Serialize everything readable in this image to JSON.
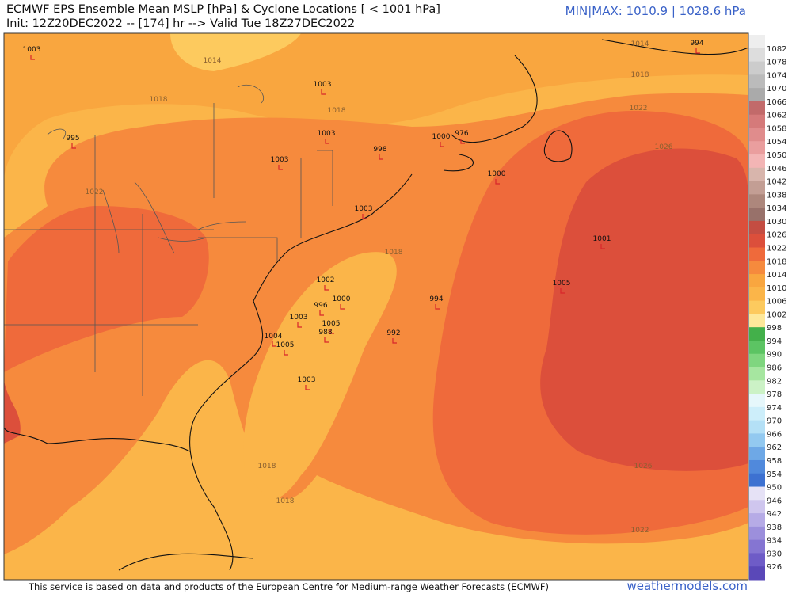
{
  "header": {
    "title": "ECMWF EPS Ensemble Mean MSLP [hPa] & Cyclone Locations [ < 1001 hPa]",
    "subtitle": "Init: 12Z20DEC2022 -- [174] hr --> Valid Tue 18Z27DEC2022",
    "minmax": "MIN|MAX: 1010.9 | 1028.6 hPa"
  },
  "colorbar": {
    "labels": [
      1082,
      1078,
      1074,
      1070,
      1066,
      1062,
      1058,
      1054,
      1050,
      1046,
      1042,
      1038,
      1034,
      1030,
      1026,
      1022,
      1018,
      1014,
      1010,
      1006,
      1002,
      998,
      994,
      990,
      986,
      982,
      978,
      974,
      970,
      966,
      962,
      958,
      954,
      950,
      946,
      942,
      938,
      934,
      930,
      926
    ]
  },
  "isobar_labels": [
    1014,
    1014,
    1018,
    1018,
    1018,
    1022,
    1026,
    1022,
    1018,
    1026,
    1022,
    1018,
    1018
  ],
  "cyclone_labels": [
    1003,
    994,
    1003,
    1003,
    995,
    1003,
    998,
    1000,
    976,
    1000,
    1003,
    1001,
    1005,
    1002,
    1000,
    996,
    994,
    1003,
    1005,
    988,
    992,
    1004,
    1005,
    1003
  ],
  "footer": {
    "credit": "This service is based on data and products of the European Centre for Medium-range Weather Forecasts (ECMWF)",
    "site": "weathermodels.com"
  }
}
